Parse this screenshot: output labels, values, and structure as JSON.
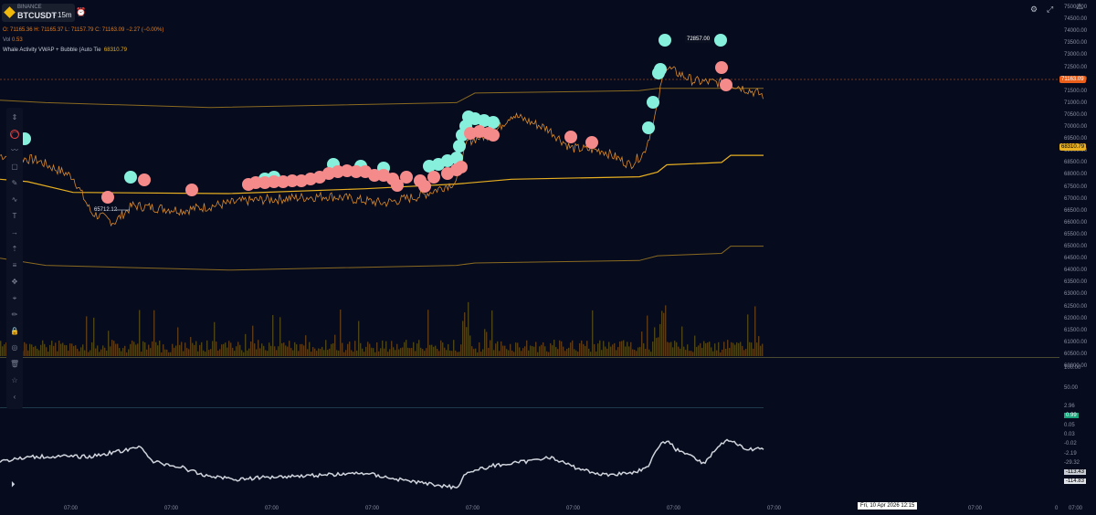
{
  "symbol": {
    "exchange": "BINANCE",
    "pair": "BTCUSDT",
    "timeframe": "• 15m"
  },
  "ohlc_text": "O: 71165.36 H: 71165.37 L: 71157.79 C: 71163.09 −2.27 (−0.00%)",
  "volume": {
    "label": "Vol",
    "value": "0.53"
  },
  "indicator": {
    "name": "Whale Activity VWAP + Bubble (Auto Tie",
    "value": "68310.79"
  },
  "annotations": {
    "high": "72857.00",
    "low": "65712.12"
  },
  "price_axis": [
    "75000.00",
    "74500.00",
    "74000.00",
    "73500.00",
    "73000.00",
    "72500.00",
    "72000.00",
    "71500.00",
    "71000.00",
    "70500.00",
    "70000.00",
    "69500.00",
    "69000.00",
    "68500.00",
    "68000.00",
    "67500.00",
    "67000.00",
    "66500.00",
    "66000.00",
    "65500.00",
    "65000.00",
    "64500.00",
    "64000.00",
    "63500.00",
    "63000.00",
    "62500.00",
    "62000.00",
    "61500.00",
    "61000.00",
    "60500.00",
    "60000.00"
  ],
  "price_tags": {
    "last": "71163.09",
    "vwap": "68310.79"
  },
  "pane2_axis": [
    "100.00",
    "50.00"
  ],
  "pane3_axis": [
    "2.96",
    "0.99",
    "0.05",
    "0.03",
    "-0.02",
    "-2.19",
    "-29.32",
    "-113.43",
    "-114.83"
  ],
  "time_axis": [
    "07:00",
    "07:00",
    "07:00",
    "07:00",
    "07:00",
    "07:00",
    "07:00",
    "07:00",
    "07:00",
    "07:00",
    "07:00"
  ],
  "crosshair_date": "Fri, 10 Apr 2026 12:15",
  "time_axis_end": "0",
  "colors": {
    "bg": "#060b1e",
    "candle": "#d98a2a",
    "vwap": "#e8b020",
    "band": "#8a6a20",
    "bull_bubble": "#86f0dc",
    "bear_bubble": "#f58a8a",
    "osc": "#d0d4dc",
    "last_tag": "#e85e1a",
    "vwap_tag": "#e8b020"
  },
  "tools": [
    "pin-icon",
    "cursor-icon",
    "trend-line-icon",
    "rectangle-icon",
    "brush-icon",
    "pattern-icon",
    "text-icon",
    "arrow-icon",
    "measure-icon",
    "fib-icon",
    "move-icon",
    "ruler-icon",
    "pencil-icon",
    "lock-icon",
    "eye-icon",
    "trash-icon",
    "star-icon",
    "collapse-icon"
  ]
}
